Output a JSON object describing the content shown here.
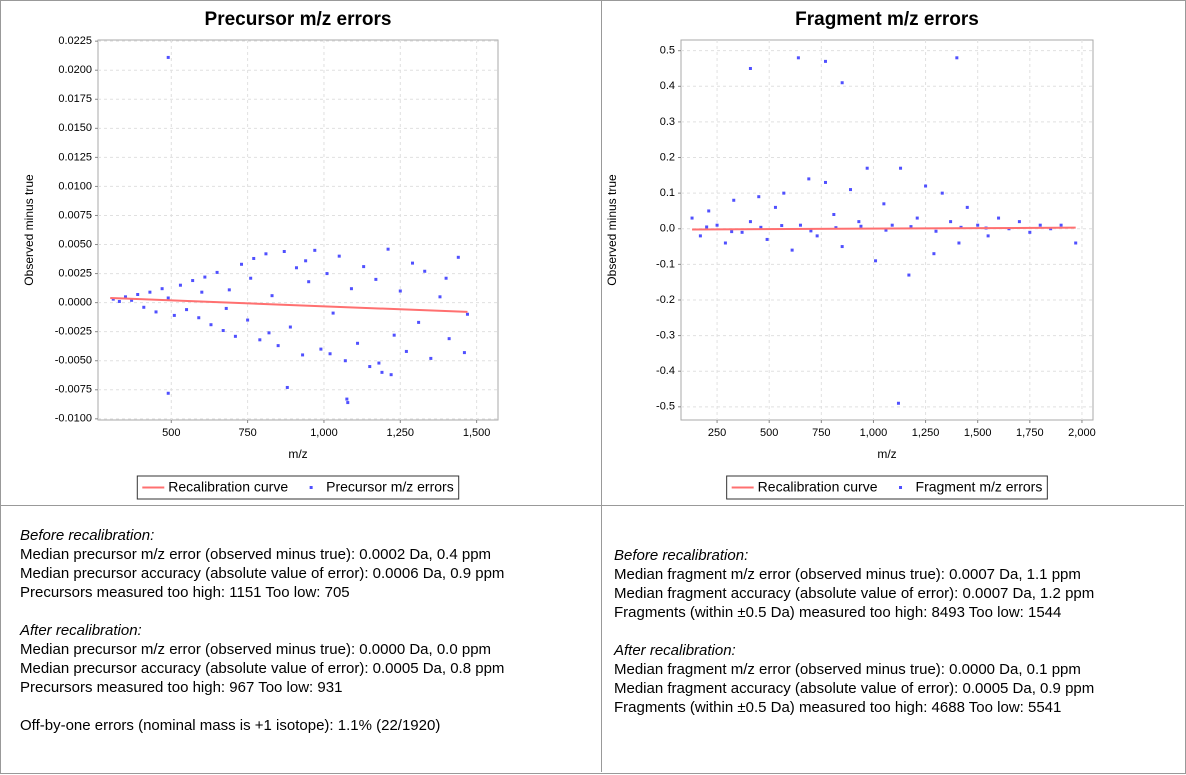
{
  "chart_data": [
    {
      "type": "scatter",
      "title": "Precursor m/z errors",
      "x_label": "m/z",
      "y_label": "Observed minus true",
      "xlim": [
        260,
        1570
      ],
      "ylim": [
        -0.0101,
        0.0226
      ],
      "grid": true,
      "legend": "bottom",
      "xticks": [
        500,
        750,
        {
          "value": 1000,
          "label": "1,000"
        },
        {
          "value": 1250,
          "label": "1,250"
        },
        {
          "value": 1500,
          "label": "1,500"
        }
      ],
      "yticks": [
        {
          "value": -0.01,
          "label": "-0.0100"
        },
        {
          "value": -0.0075,
          "label": "-0.0075"
        },
        {
          "value": -0.005,
          "label": "-0.0050"
        },
        {
          "value": -0.0025,
          "label": "-0.0025"
        },
        {
          "value": 0,
          "label": "0.0000"
        },
        {
          "value": 0.0025,
          "label": "0.0025"
        },
        {
          "value": 0.005,
          "label": "0.0050"
        },
        {
          "value": 0.0075,
          "label": "0.0075"
        },
        {
          "value": 0.01,
          "label": "0.0100"
        },
        {
          "value": 0.0125,
          "label": "0.0125"
        },
        {
          "value": 0.015,
          "label": "0.0150"
        },
        {
          "value": 0.0175,
          "label": "0.0175"
        },
        {
          "value": 0.02,
          "label": "0.0200"
        },
        0.0225
      ],
      "series": [
        {
          "name": "Recalibration curve",
          "mode": "line",
          "color": "#ff7070",
          "x": [
            300,
            1470
          ],
          "values": [
            0.0004,
            -0.0008
          ]
        },
        {
          "name": "Precursor m/z errors",
          "mode": "points",
          "color": "#5050ff",
          "x": [
            310,
            330,
            350,
            370,
            390,
            410,
            430,
            450,
            470,
            490,
            510,
            530,
            550,
            570,
            590,
            610,
            630,
            650,
            670,
            690,
            710,
            730,
            750,
            770,
            790,
            810,
            830,
            850,
            870,
            890,
            910,
            930,
            950,
            970,
            990,
            1010,
            1030,
            1050,
            1070,
            1090,
            1110,
            1130,
            1150,
            1170,
            1190,
            1210,
            1230,
            1250,
            1270,
            1290,
            1310,
            1330,
            1350,
            1380,
            1410,
            1440,
            1470,
            490,
            490,
            880,
            1075,
            1078,
            600,
            680,
            760,
            820,
            940,
            1020,
            1180,
            1220,
            1400,
            1460
          ],
          "values": [
            0.0003,
            0.0001,
            0.0005,
            0.0002,
            0.0007,
            -0.0004,
            0.0009,
            -0.0008,
            0.0012,
            0.0004,
            -0.0011,
            0.0015,
            -0.0006,
            0.0019,
            -0.0013,
            0.0022,
            -0.0019,
            0.0026,
            -0.0024,
            0.0011,
            -0.0029,
            0.0033,
            -0.0015,
            0.0038,
            -0.0032,
            0.0042,
            0.0006,
            -0.0037,
            0.0044,
            -0.0021,
            0.003,
            -0.0045,
            0.0018,
            0.0045,
            -0.004,
            0.0025,
            -0.0009,
            0.004,
            -0.005,
            0.0012,
            -0.0035,
            0.0031,
            -0.0055,
            0.002,
            -0.006,
            0.0046,
            -0.0028,
            0.001,
            -0.0042,
            0.0034,
            -0.0017,
            0.0027,
            -0.0048,
            0.0005,
            -0.0031,
            0.0039,
            -0.001,
            0.0211,
            -0.0078,
            -0.0073,
            -0.0083,
            -0.0086,
            0.0009,
            -0.0005,
            0.0021,
            -0.0026,
            0.0036,
            -0.0044,
            -0.0052,
            -0.0062,
            0.0021,
            -0.0043
          ]
        }
      ]
    },
    {
      "type": "scatter",
      "title": "Fragment m/z errors",
      "x_label": "m/z",
      "y_label": "Observed minus true",
      "xlim": [
        77,
        2053
      ],
      "ylim": [
        -0.537,
        0.53
      ],
      "grid": true,
      "legend": "bottom",
      "xticks": [
        250,
        500,
        750,
        {
          "value": 1000,
          "label": "1,000"
        },
        {
          "value": 1250,
          "label": "1,250"
        },
        {
          "value": 1500,
          "label": "1,500"
        },
        {
          "value": 1750,
          "label": "1,750"
        },
        {
          "value": 2000,
          "label": "2,000"
        }
      ],
      "yticks": [
        -0.5,
        -0.4,
        -0.3,
        -0.2,
        -0.1,
        {
          "value": 0,
          "label": "0.0"
        },
        0.1,
        0.2,
        0.3,
        0.4,
        0.5
      ],
      "series": [
        {
          "name": "Recalibration curve",
          "mode": "line",
          "color": "#ff7070",
          "x": [
            130,
            1970
          ],
          "values": [
            -0.002,
            0.003
          ]
        },
        {
          "name": "Fragment m/z errors",
          "mode": "points",
          "color": "#5050ff",
          "x": [
            130,
            170,
            210,
            250,
            290,
            330,
            370,
            410,
            450,
            490,
            530,
            570,
            610,
            650,
            690,
            730,
            770,
            810,
            850,
            890,
            930,
            970,
            1010,
            1050,
            1090,
            1130,
            1170,
            1210,
            1250,
            1290,
            1330,
            1370,
            1410,
            1450,
            1500,
            1550,
            1600,
            1650,
            1700,
            1750,
            1800,
            1850,
            1900,
            1970,
            410,
            640,
            770,
            850,
            1400,
            1120,
            200,
            320,
            460,
            560,
            700,
            820,
            940,
            1060,
            1180,
            1300,
            1420,
            1540
          ],
          "values": [
            0.03,
            -0.02,
            0.05,
            0.01,
            -0.04,
            0.08,
            -0.01,
            0.02,
            0.09,
            -0.03,
            0.06,
            0.1,
            -0.06,
            0.01,
            0.14,
            -0.02,
            0.13,
            0.04,
            -0.05,
            0.11,
            0.02,
            0.17,
            -0.09,
            0.07,
            0.01,
            0.17,
            -0.13,
            0.03,
            0.12,
            -0.07,
            0.1,
            0.02,
            -0.04,
            0.06,
            0.01,
            -0.02,
            0.03,
            0,
            0.02,
            -0.01,
            0.01,
            0,
            0.01,
            -0.04,
            0.45,
            0.48,
            0.47,
            0.41,
            0.48,
            -0.49,
            0.005,
            -0.008,
            0.004,
            0.009,
            -0.006,
            0.003,
            0.007,
            -0.004,
            0.006,
            -0.007,
            0.004,
            0.002
          ]
        }
      ]
    }
  ],
  "text_panels": [
    {
      "sections": [
        {
          "heading": "Before recalibration:",
          "lines": [
            "Median precursor m/z error (observed minus true): 0.0002 Da, 0.4 ppm",
            "Median precursor accuracy (absolute value of error): 0.0006 Da, 0.9 ppm",
            "Precursors measured too high: 1151 Too low: 705"
          ]
        },
        {
          "heading": "After recalibration:",
          "lines": [
            "Median precursor m/z error (observed minus true): 0.0000 Da, 0.0 ppm",
            "Median precursor accuracy (absolute value of error): 0.0005 Da, 0.8 ppm",
            "Precursors measured too high: 967 Too low: 931"
          ]
        }
      ],
      "footer": "Off-by-one errors (nominal mass is +1 isotope): 1.1% (22/1920)"
    },
    {
      "sections": [
        {
          "heading": "Before recalibration:",
          "lines": [
            "Median fragment m/z error (observed minus true): 0.0007 Da, 1.1 ppm",
            "Median fragment accuracy (absolute value of error): 0.0007 Da, 1.2 ppm",
            "Fragments (within ±0.5 Da) measured too high: 8493 Too low: 1544"
          ]
        },
        {
          "heading": "After recalibration:",
          "lines": [
            "Median fragment m/z error (observed minus true): 0.0000 Da, 0.1 ppm",
            "Median fragment accuracy (absolute value of error): 0.0005 Da, 0.9 ppm",
            "Fragments (within ±0.5 Da) measured too high: 4688 Too low: 5541"
          ]
        }
      ]
    }
  ]
}
